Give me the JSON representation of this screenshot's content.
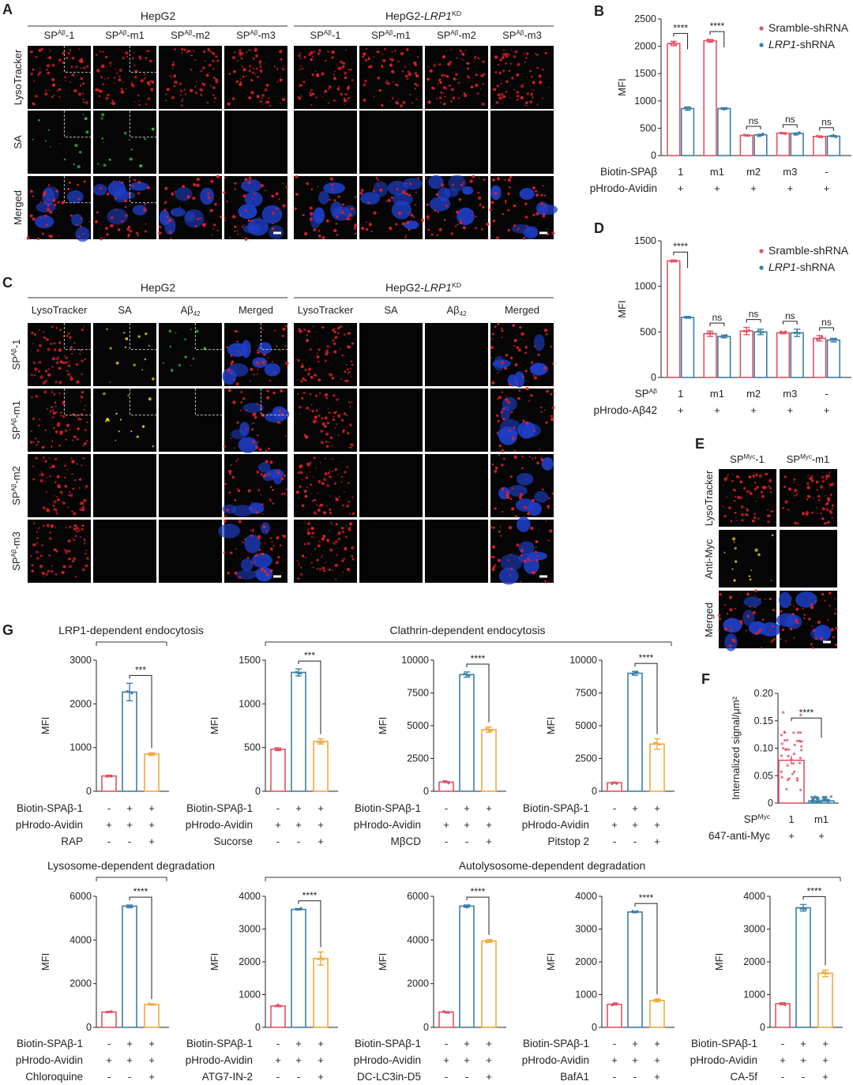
{
  "panel_letters": [
    "A",
    "B",
    "C",
    "D",
    "E",
    "F",
    "G"
  ],
  "micro_A": {
    "groups": [
      "HepG2",
      "HepG2-LRP1KD"
    ],
    "cols": [
      "SPAβ-1",
      "SPAβ-m1",
      "SPAβ-m2",
      "SPAβ-m3"
    ],
    "rows": [
      "LysoTracker",
      "SA",
      "Merged"
    ],
    "row_colors": [
      "#e4242a",
      "#23a33b",
      "#222222"
    ]
  },
  "micro_C": {
    "groups": [
      "HepG2",
      "HepG2-LRP1KD"
    ],
    "cols": [
      "LysoTracker",
      "SA",
      "Aβ42",
      "Merged"
    ],
    "col_colors": [
      "#e4242a",
      "#e8d21a",
      "#23a33b",
      "#222222"
    ],
    "rows": [
      "SPAβ-1",
      "SPAβ-m1",
      "SPAβ-m2",
      "SPAβ-m3"
    ]
  },
  "micro_E": {
    "cols": [
      "SPMyc-1",
      "SPMyc-m1"
    ],
    "rows": [
      "LysoTracker",
      "Anti-Myc",
      "Merged"
    ],
    "row_colors": [
      "#e4242a",
      "#e8d21a",
      "#222222"
    ]
  },
  "colors": {
    "red": "#e05466",
    "blue": "#3c7fa6",
    "orange": "#f2a93b"
  },
  "chart_data": [
    {
      "id": "B",
      "type": "bar",
      "ylabel": "MFI",
      "ylim": [
        0,
        2500
      ],
      "yticks": [
        0,
        500,
        1000,
        1500,
        2000,
        2500
      ],
      "categories": [
        "1",
        "m1",
        "m2",
        "m3",
        "-"
      ],
      "series": [
        {
          "name": "Sramble-shRNA",
          "values": [
            2050,
            2100,
            370,
            410,
            350
          ],
          "errors": [
            40,
            25,
            10,
            10,
            10
          ]
        },
        {
          "name": "LRP1-shRNA",
          "values": [
            860,
            860,
            380,
            405,
            355
          ],
          "errors": [
            30,
            15,
            10,
            10,
            10
          ]
        }
      ],
      "row_labels": [
        "Biotin-SPAβ",
        "pHrodo-Avidin"
      ],
      "row_values": [
        [
          "1",
          "m1",
          "m2",
          "m3",
          "-"
        ],
        [
          "+",
          "+",
          "+",
          "+",
          "+"
        ]
      ],
      "significance": [
        "****",
        "****",
        "ns",
        "ns",
        "ns"
      ],
      "legend": "top-right"
    },
    {
      "id": "D",
      "type": "bar",
      "ylabel": "MFI",
      "ylim": [
        0,
        1500
      ],
      "yticks": [
        0,
        500,
        1000,
        1500
      ],
      "categories": [
        "1",
        "m1",
        "m2",
        "m3",
        "-"
      ],
      "series": [
        {
          "name": "Sramble-shRNA",
          "values": [
            1280,
            480,
            510,
            490,
            430
          ],
          "errors": [
            10,
            30,
            40,
            10,
            30
          ]
        },
        {
          "name": "LRP1-shRNA",
          "values": [
            660,
            450,
            500,
            490,
            410
          ],
          "errors": [
            10,
            15,
            30,
            40,
            20
          ]
        }
      ],
      "row_labels": [
        "SPAβ",
        "pHrodo-Aβ42"
      ],
      "row_values": [
        [
          "1",
          "m1",
          "m2",
          "m3",
          "-"
        ],
        [
          "+",
          "+",
          "+",
          "+",
          "+"
        ]
      ],
      "significance": [
        "****",
        "ns",
        "ns",
        "ns",
        "ns"
      ],
      "legend": "top-right"
    },
    {
      "id": "F",
      "type": "scatter",
      "ylabel": "Internalized signal/μm²",
      "ylim": [
        0,
        0.2
      ],
      "yticks": [
        "0",
        "0.05",
        "0.10",
        "0.15",
        "0.20"
      ],
      "categories": [
        "1",
        "m1"
      ],
      "means": [
        0.078,
        0.004
      ],
      "errors": [
        0.008,
        0.002
      ],
      "row_labels": [
        "SPMyc",
        "647-anti-Myc"
      ],
      "row_values": [
        [
          "1",
          "m1"
        ],
        [
          "+",
          "+"
        ]
      ],
      "significance": "****"
    },
    {
      "id": "G1",
      "type": "bar",
      "ylabel": "MFI",
      "ylim": [
        0,
        3000
      ],
      "yticks": [
        "0",
        "1000",
        "2000",
        "3000"
      ],
      "values": [
        350,
        2270,
        850
      ],
      "errors": [
        20,
        200,
        30
      ],
      "row_labels": [
        "Biotin-SPAβ-1",
        "pHrodo-Avidin",
        "RAP"
      ],
      "row_values": [
        [
          "-",
          "+",
          "+"
        ],
        [
          "+",
          "+",
          "+"
        ],
        [
          "-",
          "-",
          "+"
        ]
      ],
      "significance": "***"
    },
    {
      "id": "G2",
      "type": "bar",
      "ylabel": "MFI",
      "ylim": [
        0,
        1500
      ],
      "yticks": [
        "0",
        "500",
        "1000",
        "1500"
      ],
      "values": [
        480,
        1360,
        570
      ],
      "errors": [
        15,
        40,
        30
      ],
      "row_labels": [
        "Biotin-SPAβ-1",
        "pHrodo-Avidin",
        "Sucorse"
      ],
      "row_values": [
        [
          "-",
          "+",
          "+"
        ],
        [
          "+",
          "+",
          "+"
        ],
        [
          "-",
          "-",
          "+"
        ]
      ],
      "significance": "***"
    },
    {
      "id": "G3",
      "type": "bar",
      "ylabel": "MFI",
      "ylim": [
        0,
        10000
      ],
      "yticks": [
        "0",
        "2500",
        "5000",
        "7500",
        "10000"
      ],
      "values": [
        700,
        8900,
        4700
      ],
      "errors": [
        40,
        200,
        200
      ],
      "row_labels": [
        "Biotin-SPAβ-1",
        "pHrodo-Avidin",
        "MβCD"
      ],
      "row_values": [
        [
          "-",
          "+",
          "+"
        ],
        [
          "+",
          "+",
          "+"
        ],
        [
          "-",
          "-",
          "+"
        ]
      ],
      "significance": "****"
    },
    {
      "id": "G4",
      "type": "bar",
      "ylabel": "MFI",
      "ylim": [
        0,
        10000
      ],
      "yticks": [
        "0",
        "2500",
        "5000",
        "7500",
        "10000"
      ],
      "values": [
        650,
        9000,
        3600
      ],
      "errors": [
        40,
        150,
        400
      ],
      "row_labels": [
        "Biotin-SPAβ-1",
        "pHrodo-Avidin",
        "Pitstop 2"
      ],
      "row_values": [
        [
          "-",
          "+",
          "+"
        ],
        [
          "+",
          "+",
          "+"
        ],
        [
          "-",
          "-",
          "+"
        ]
      ],
      "significance": "****"
    },
    {
      "id": "G5",
      "type": "bar",
      "ylabel": "MFI",
      "ylim": [
        0,
        6000
      ],
      "yticks": [
        "0",
        "2000",
        "4000",
        "6000"
      ],
      "values": [
        700,
        5550,
        1050
      ],
      "errors": [
        20,
        50,
        30
      ],
      "row_labels": [
        "Biotin-SPAβ-1",
        "pHrodo-Avidin",
        "Chloroquine"
      ],
      "row_values": [
        [
          "-",
          "+",
          "+"
        ],
        [
          "+",
          "+",
          "+"
        ],
        [
          "-",
          "-",
          "+"
        ]
      ],
      "significance": "****"
    },
    {
      "id": "G6",
      "type": "bar",
      "ylabel": "MFI",
      "ylim": [
        0,
        4000
      ],
      "yticks": [
        "0",
        "1000",
        "2000",
        "3000",
        "4000"
      ],
      "values": [
        650,
        3600,
        2100
      ],
      "errors": [
        20,
        20,
        200
      ],
      "row_labels": [
        "Biotin-SPAβ-1",
        "pHrodo-Avidin",
        "ATG7-IN-2"
      ],
      "row_values": [
        [
          "-",
          "+",
          "+"
        ],
        [
          "+",
          "+",
          "+"
        ],
        [
          "-",
          "-",
          "+"
        ]
      ],
      "significance": "****"
    },
    {
      "id": "G7",
      "type": "bar",
      "ylabel": "MFI",
      "ylim": [
        0,
        6000
      ],
      "yticks": [
        "0",
        "2000",
        "4000",
        "6000"
      ],
      "values": [
        700,
        5550,
        3950
      ],
      "errors": [
        20,
        50,
        60
      ],
      "row_labels": [
        "Biotin-SPAβ-1",
        "pHrodo-Avidin",
        "DC-LC3in-D5"
      ],
      "row_values": [
        [
          "-",
          "+",
          "+"
        ],
        [
          "+",
          "+",
          "+"
        ],
        [
          "-",
          "-",
          "+"
        ]
      ],
      "significance": "****"
    },
    {
      "id": "G8",
      "type": "bar",
      "ylabel": "MFI",
      "ylim": [
        0,
        4000
      ],
      "yticks": [
        "0",
        "1000",
        "2000",
        "3000",
        "4000"
      ],
      "values": [
        700,
        3520,
        820
      ],
      "errors": [
        20,
        20,
        40
      ],
      "row_labels": [
        "Biotin-SPAβ-1",
        "pHrodo-Avidin",
        "BafA1"
      ],
      "row_values": [
        [
          "-",
          "+",
          "+"
        ],
        [
          "+",
          "+",
          "+"
        ],
        [
          "-",
          "-",
          "+"
        ]
      ],
      "significance": "****"
    },
    {
      "id": "G9",
      "type": "bar",
      "ylabel": "MFI",
      "ylim": [
        0,
        4000
      ],
      "yticks": [
        "0",
        "1000",
        "2000",
        "3000",
        "4000"
      ],
      "values": [
        720,
        3650,
        1650
      ],
      "errors": [
        30,
        100,
        100
      ],
      "row_labels": [
        "Biotin-SPAβ-1",
        "pHrodo-Avidin",
        "CA-5f"
      ],
      "row_values": [
        [
          "-",
          "+",
          "+"
        ],
        [
          "+",
          "+",
          "+"
        ],
        [
          "-",
          "-",
          "+"
        ]
      ],
      "significance": "****"
    }
  ],
  "g_group_titles": [
    "LRP1-dependent endocytosis",
    "Clathrin-dependent endocytosis",
    "Lysosome-dependent degradation",
    "Autolysosome-dependent degradation"
  ]
}
